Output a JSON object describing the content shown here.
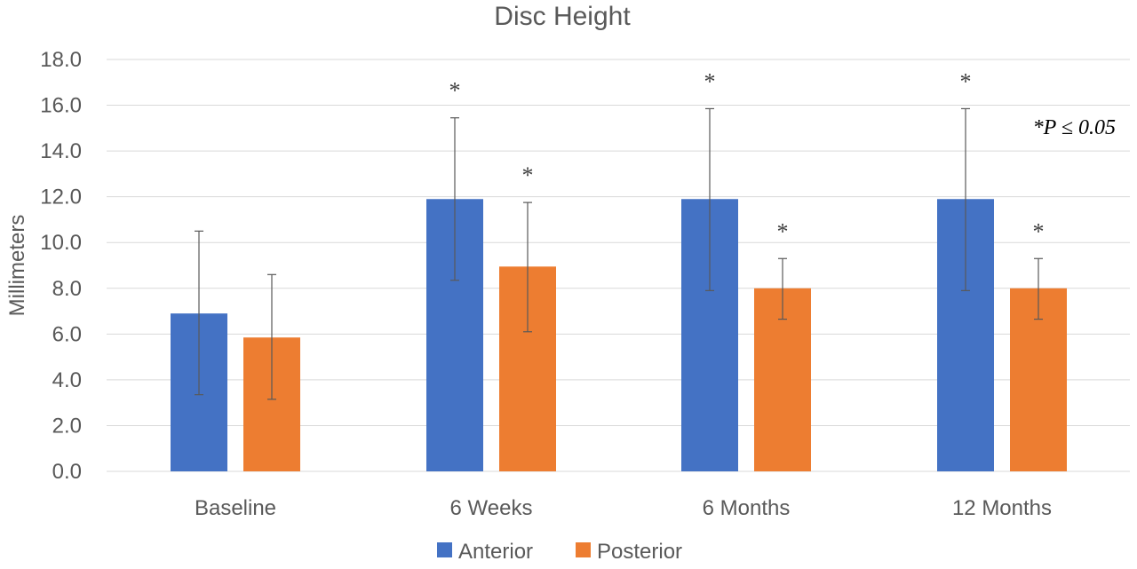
{
  "chart_data": {
    "type": "bar",
    "title": "Disc Height",
    "xlabel": "",
    "ylabel": "Millimeters",
    "ylim": [
      0,
      18
    ],
    "yticks": [
      "0.0",
      "2.0",
      "4.0",
      "6.0",
      "8.0",
      "10.0",
      "12.0",
      "14.0",
      "16.0",
      "18.0"
    ],
    "ytick_values": [
      0,
      2,
      4,
      6,
      8,
      10,
      12,
      14,
      16,
      18
    ],
    "grid": true,
    "legend_position": "bottom",
    "categories": [
      "Baseline",
      "6 Weeks",
      "6 Months",
      "12 Months"
    ],
    "series": [
      {
        "name": "Anterior",
        "color": "#4472C4",
        "values": [
          6.9,
          11.9,
          11.9,
          11.9
        ],
        "error_low": [
          3.35,
          8.35,
          7.9,
          7.9
        ],
        "error_high": [
          10.5,
          15.45,
          15.85,
          15.85
        ],
        "significance": [
          "",
          "*",
          "*",
          "*"
        ]
      },
      {
        "name": "Posterior",
        "color": "#ED7D31",
        "values": [
          5.85,
          8.95,
          8.0,
          8.0
        ],
        "error_low": [
          3.15,
          6.1,
          6.65,
          6.65
        ],
        "error_high": [
          8.6,
          11.75,
          9.3,
          9.3
        ],
        "significance": [
          "",
          "*",
          "*",
          "*"
        ]
      }
    ],
    "annotation": "*P  ≤ 0.05"
  }
}
